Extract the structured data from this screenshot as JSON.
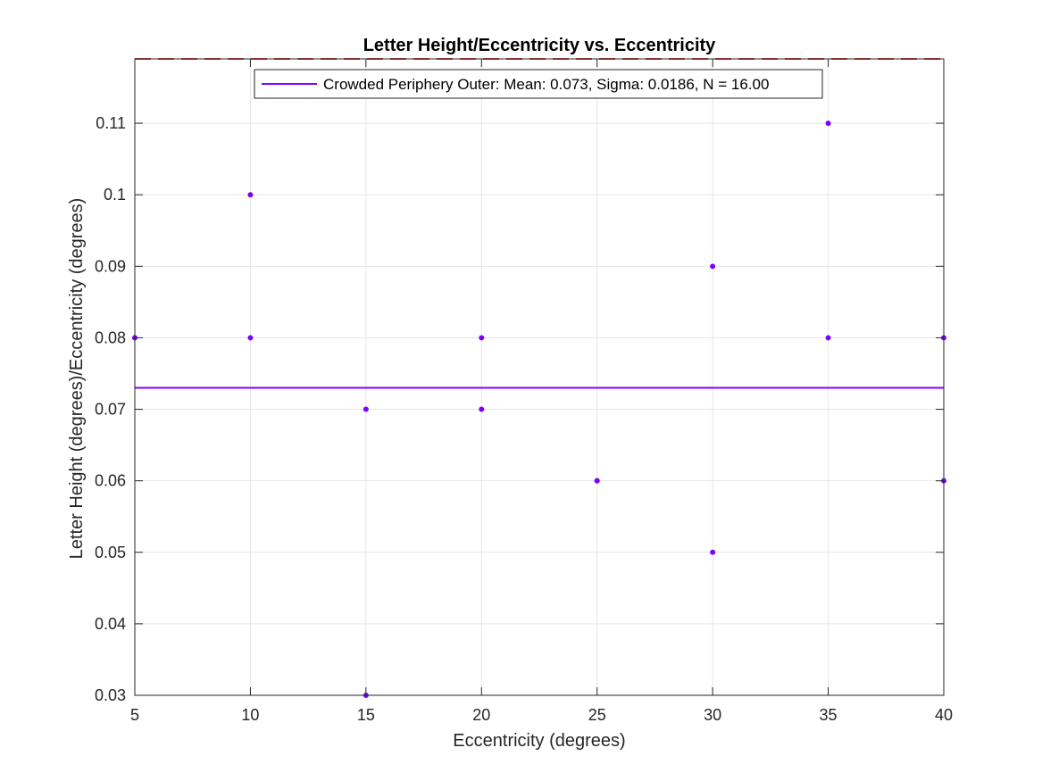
{
  "chart_data": {
    "type": "scatter",
    "title": "Letter Height/Eccentricity vs. Eccentricity",
    "xlabel": "Eccentricity (degrees)",
    "ylabel": "Letter Height (degrees)/Eccentricity (degrees)",
    "xlim": [
      5,
      40
    ],
    "ylim": [
      0.03,
      0.119
    ],
    "xticks": [
      5,
      10,
      15,
      20,
      25,
      30,
      35,
      40
    ],
    "yticks": [
      0.03,
      0.04,
      0.05,
      0.06,
      0.07,
      0.08,
      0.09,
      0.1,
      0.11
    ],
    "ytick_labels": [
      "0.03",
      "0.04",
      "0.05",
      "0.06",
      "0.07",
      "0.08",
      "0.09",
      "0.1",
      "0.11"
    ],
    "grid": true,
    "legend_position": "top-center",
    "series": [
      {
        "name": "Crowded Periphery Outer: Mean: 0.073, Sigma: 0.0186, N = 16.00",
        "type": "scatter",
        "color": "#8000ff",
        "x": [
          5,
          10,
          10,
          15,
          15,
          20,
          20,
          25,
          25,
          30,
          30,
          35,
          35,
          40,
          40,
          5
        ],
        "y": [
          0.08,
          0.1,
          0.08,
          0.07,
          0.03,
          0.08,
          0.07,
          0.06,
          0.06,
          0.09,
          0.05,
          0.11,
          0.08,
          0.08,
          0.06,
          0.08
        ]
      }
    ],
    "mean_line": {
      "y": 0.073,
      "color": "#8000ff",
      "style": "solid"
    },
    "reference_line": {
      "y": 0.119,
      "color": "#e8413c",
      "style": "dashed"
    }
  }
}
